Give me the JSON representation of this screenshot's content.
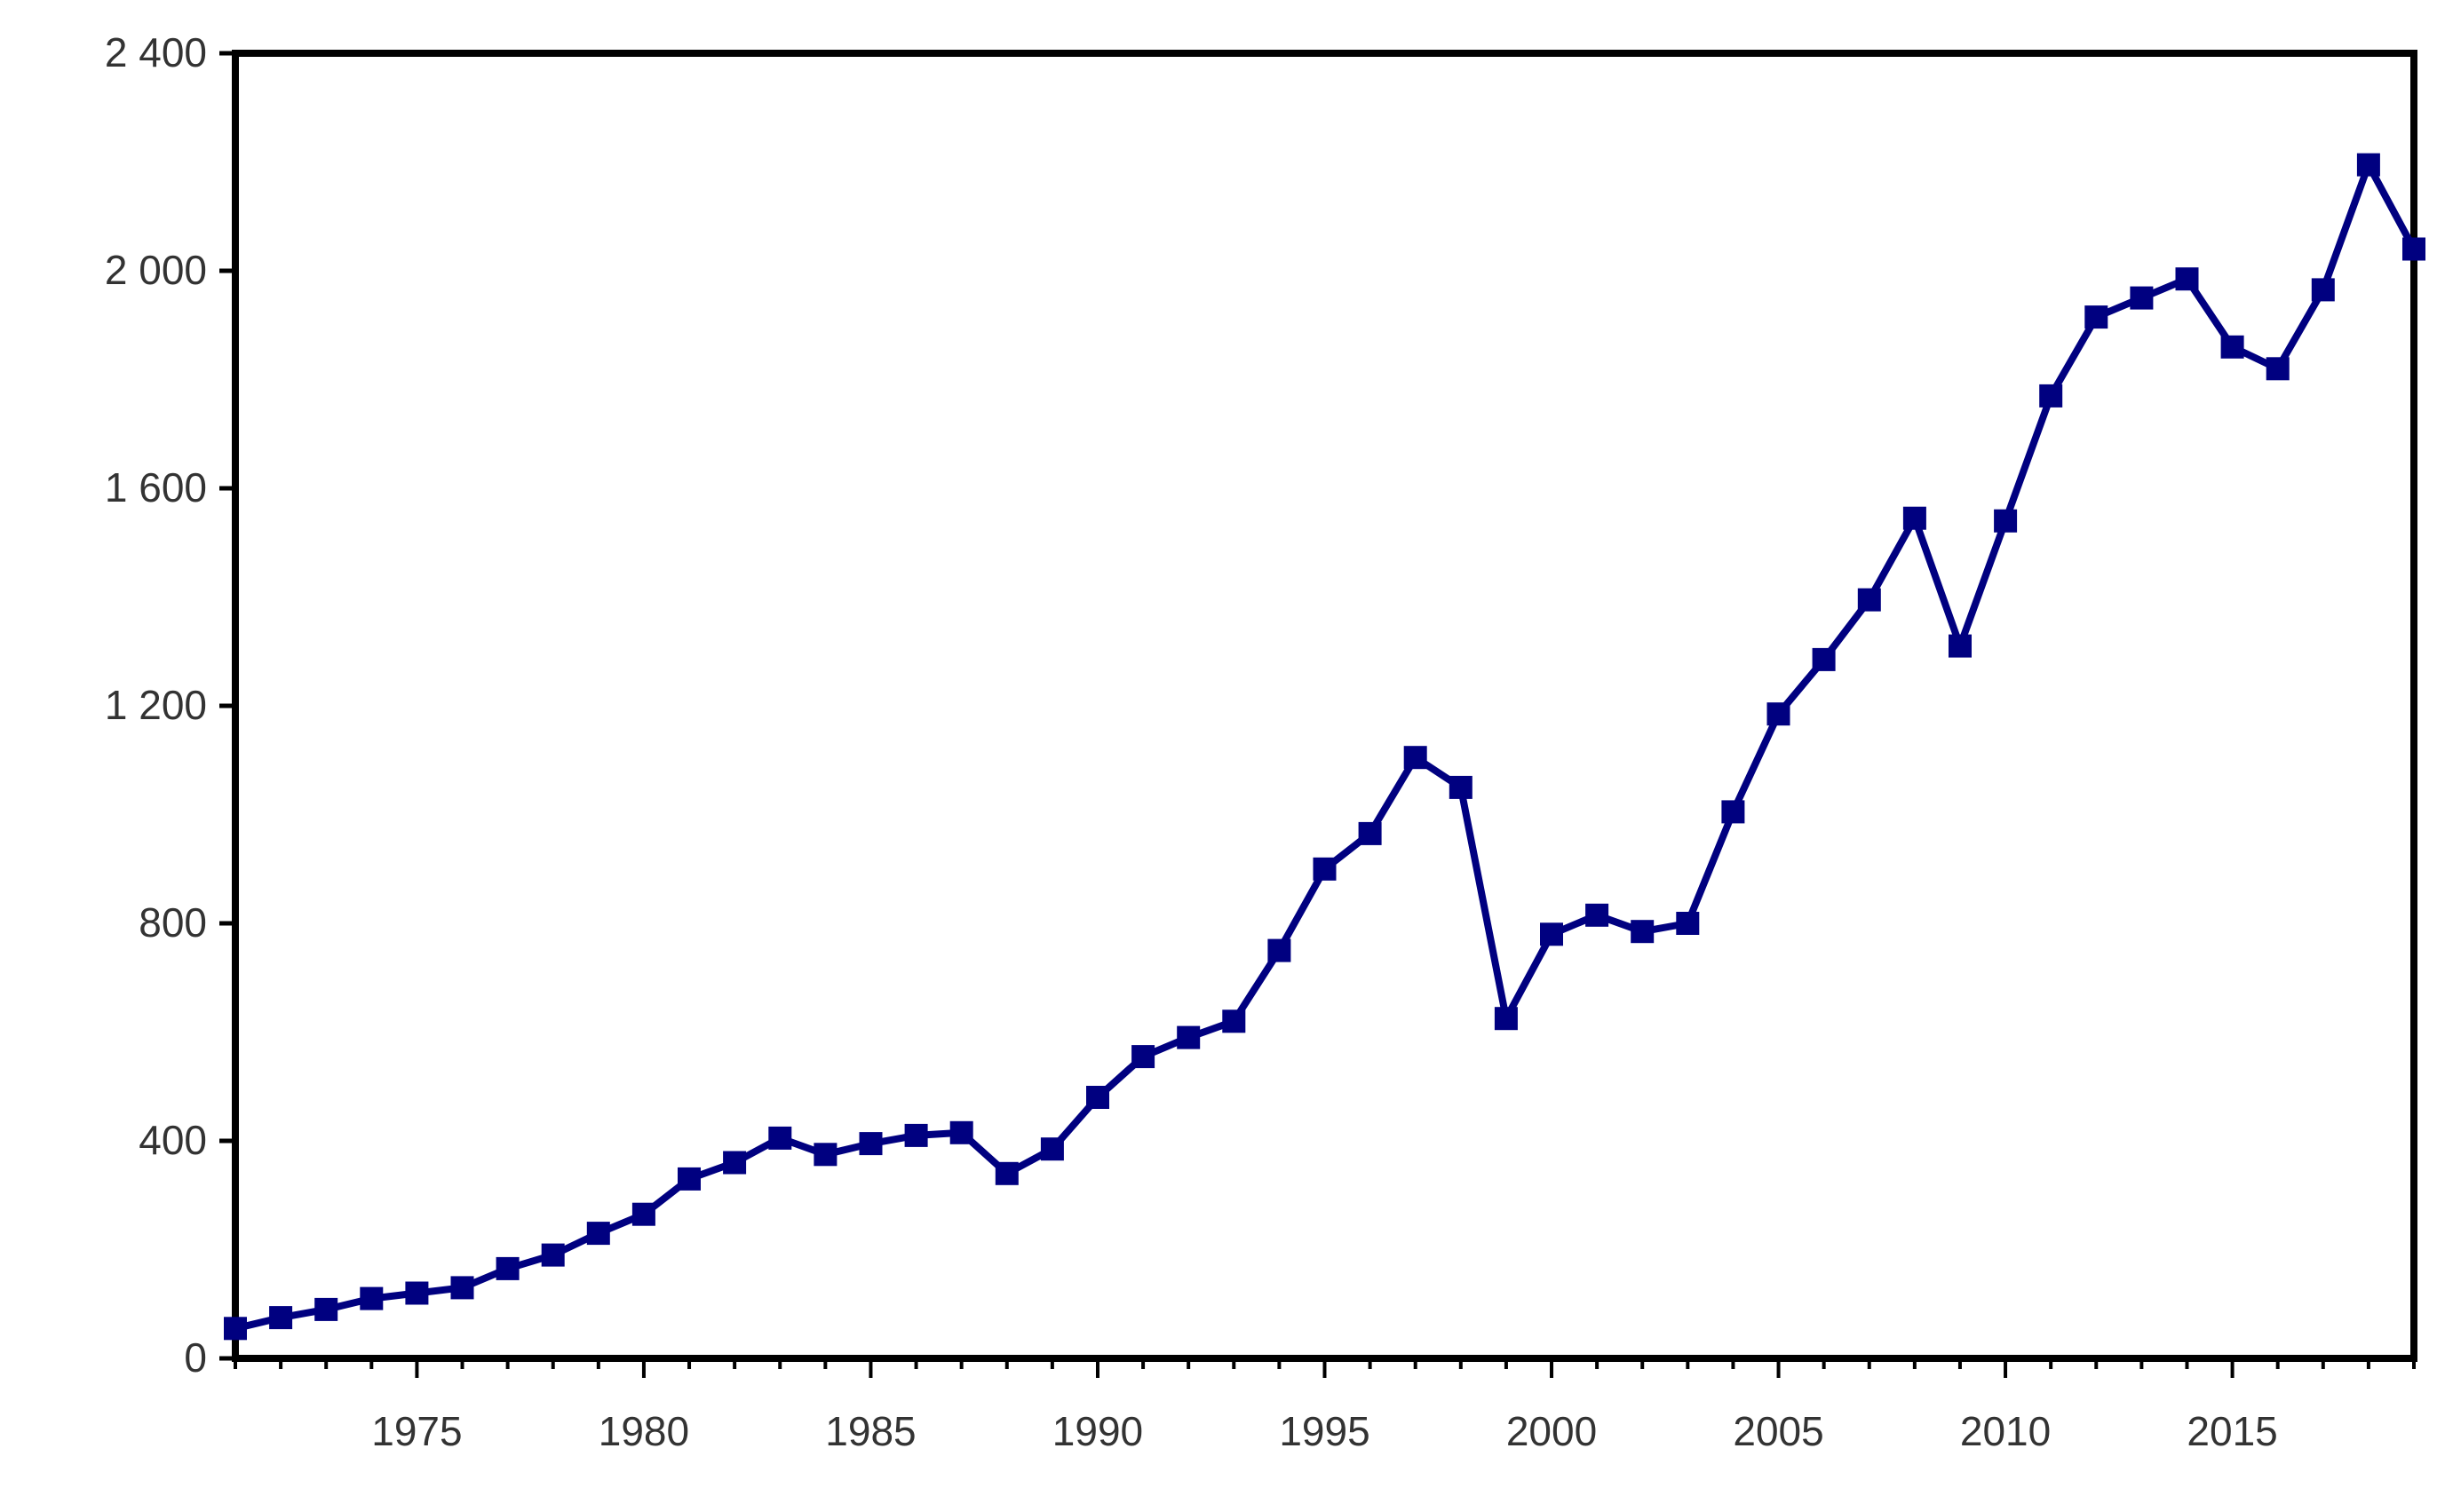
{
  "chart_data": {
    "type": "line",
    "title": "",
    "xlabel": "",
    "ylabel": "",
    "xlim": [
      1971,
      2019
    ],
    "ylim": [
      0,
      2400
    ],
    "x_ticks": [
      1975,
      1980,
      1985,
      1990,
      1995,
      2000,
      2005,
      2010,
      2015
    ],
    "y_ticks": [
      0,
      400,
      800,
      1200,
      1600,
      2000,
      2400
    ],
    "x_tick_labels": [
      "1975",
      "1980",
      "1985",
      "1990",
      "1995",
      "2000",
      "2005",
      "2010",
      "2015"
    ],
    "y_tick_labels": [
      "0",
      "400",
      "800",
      "1 200",
      "1 600",
      "2 000",
      "2 400"
    ],
    "grid": false,
    "legend": "none",
    "series": [
      {
        "color": "#000080",
        "marker": "square",
        "x": [
          1971,
          1972,
          1973,
          1974,
          1975,
          1976,
          1977,
          1978,
          1979,
          1980,
          1981,
          1982,
          1983,
          1984,
          1985,
          1986,
          1987,
          1988,
          1989,
          1990,
          1991,
          1992,
          1993,
          1994,
          1995,
          1996,
          1997,
          1998,
          1999,
          2000,
          2001,
          2002,
          2003,
          2004,
          2005,
          2006,
          2007,
          2008,
          2009,
          2010,
          2011,
          2012,
          2013,
          2014,
          2015,
          2016,
          2017,
          2018,
          2019
        ],
        "values": [
          55,
          75,
          90,
          110,
          120,
          130,
          165,
          190,
          230,
          265,
          330,
          360,
          405,
          375,
          395,
          410,
          415,
          340,
          385,
          480,
          555,
          590,
          620,
          750,
          900,
          965,
          1105,
          1050,
          625,
          780,
          815,
          785,
          800,
          1005,
          1185,
          1285,
          1395,
          1545,
          1310,
          1540,
          1770,
          1915,
          1950,
          1985,
          1860,
          1820,
          1965,
          2195,
          2040
        ]
      }
    ]
  }
}
